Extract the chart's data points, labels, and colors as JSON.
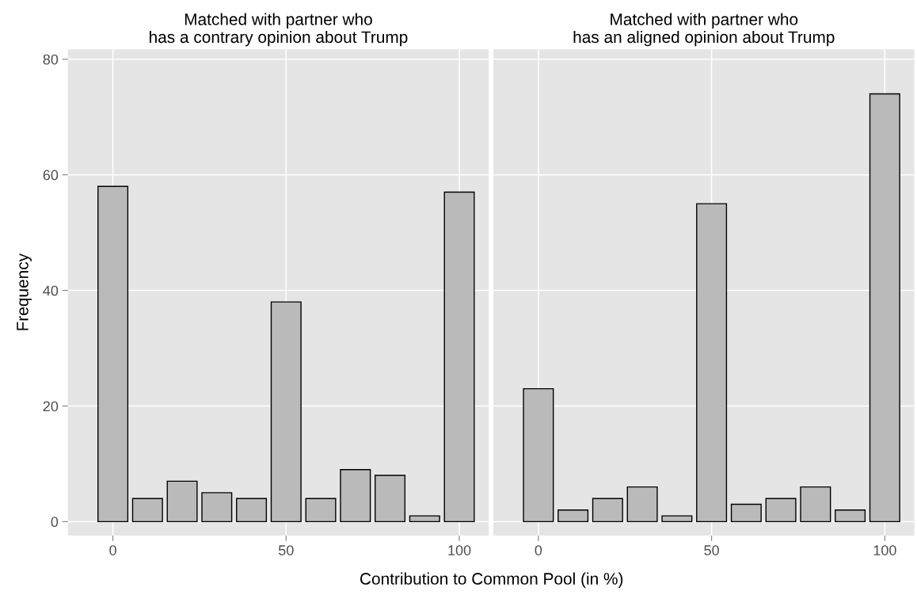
{
  "chart_data": [
    {
      "type": "bar",
      "title": "Matched with partner who\nhas a contrary opinion about Trump",
      "xlabel": "Contribution to Common Pool (in %)",
      "ylabel": "Frequency",
      "x": [
        0,
        10,
        20,
        30,
        40,
        50,
        60,
        70,
        80,
        90,
        100
      ],
      "series": [
        {
          "color": "#bababa",
          "values": [
            58,
            4,
            7,
            5,
            4,
            38,
            4,
            9,
            8,
            1,
            57
          ]
        }
      ],
      "xlim": [
        -13,
        108.5
      ],
      "xticks": [
        0,
        50,
        100
      ],
      "ylim": [
        -2.4,
        81.7
      ],
      "yticks": [
        0,
        20,
        40,
        60,
        80
      ],
      "grid": true
    },
    {
      "type": "bar",
      "title": "Matched with partner who\nhas an aligned opinion about Trump",
      "x": [
        0,
        10,
        20,
        30,
        40,
        50,
        60,
        70,
        80,
        90,
        100
      ],
      "series": [
        {
          "color": "#bababa",
          "values": [
            23,
            2,
            4,
            6,
            1,
            55,
            3,
            4,
            6,
            2,
            74
          ]
        }
      ],
      "xlim": [
        -13,
        108.5
      ],
      "xticks": [
        0,
        50,
        100
      ],
      "ylim": [
        -2.4,
        81.7
      ],
      "yticks": [
        0,
        20,
        40,
        60,
        80
      ],
      "grid": true,
      "tick_labels": "x"
    }
  ]
}
